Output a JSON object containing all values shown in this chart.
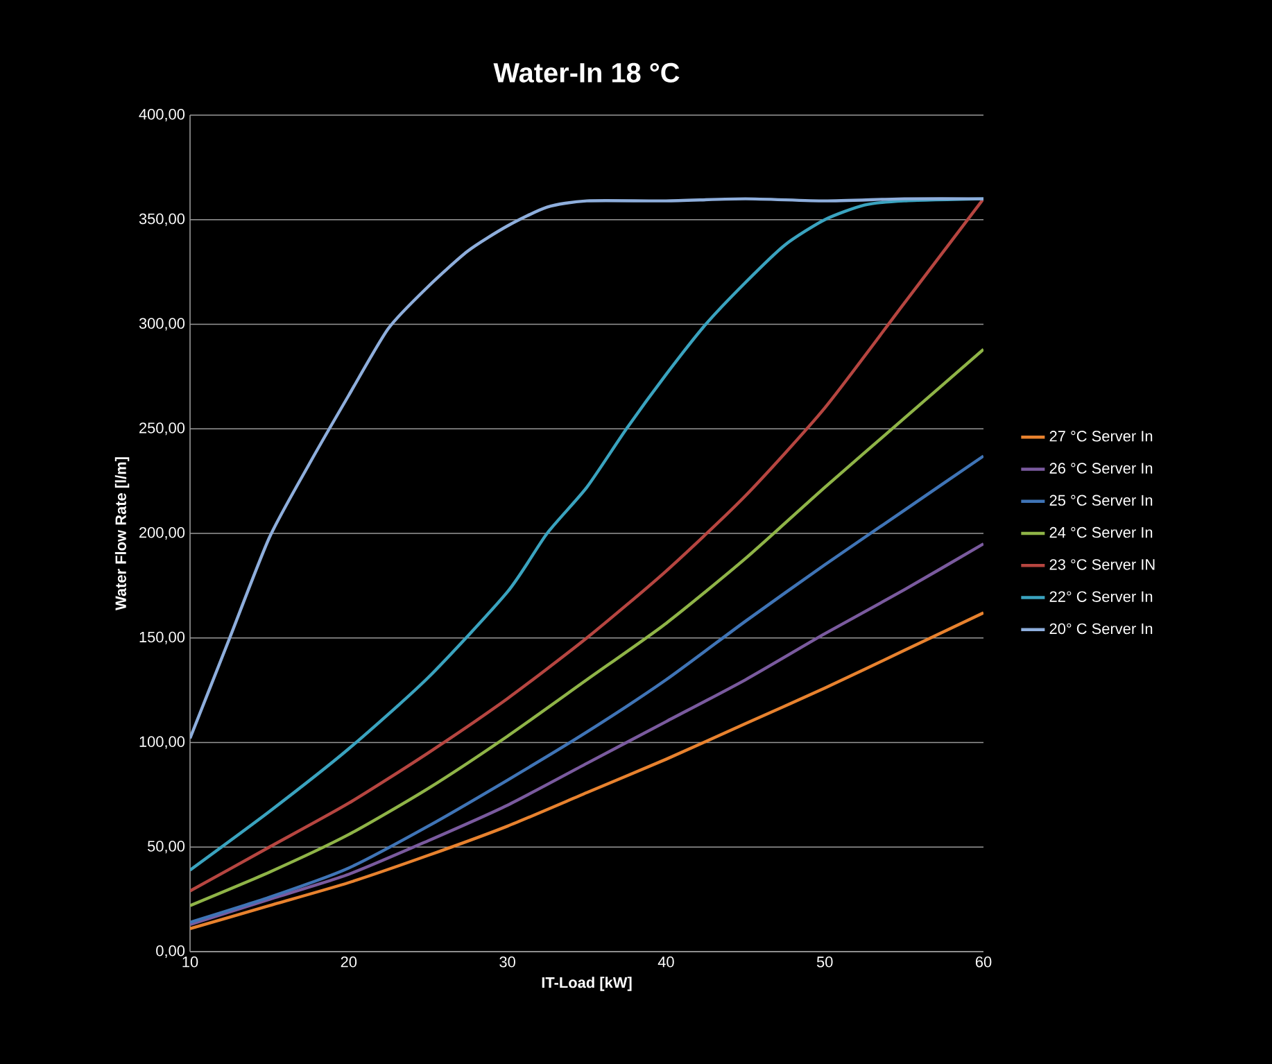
{
  "chart_data": {
    "type": "line",
    "title": "Water-In 18 °C",
    "xlabel": "IT-Load [kW]",
    "ylabel": "Water Flow Rate [l/m]",
    "xlim": [
      10,
      60
    ],
    "xticks": [
      10,
      20,
      30,
      40,
      50,
      60
    ],
    "ylim": [
      0,
      400
    ],
    "yticks": [
      {
        "value": 0,
        "label": "0,00"
      },
      {
        "value": 50,
        "label": "50,00"
      },
      {
        "value": 100,
        "label": "100,00"
      },
      {
        "value": 150,
        "label": "150,00"
      },
      {
        "value": 200,
        "label": "200,00"
      },
      {
        "value": 250,
        "label": "250,00"
      },
      {
        "value": 300,
        "label": "300,00"
      },
      {
        "value": 350,
        "label": "350,00"
      },
      {
        "value": 400,
        "label": "400,00"
      }
    ],
    "grid": "y",
    "legend": "right",
    "marker": "none",
    "line_style": "solid",
    "series": [
      {
        "name": "27 °C Server In",
        "color": "#e8822e",
        "x": [
          10,
          15,
          20,
          25,
          30,
          35,
          40,
          45,
          50,
          55,
          60
        ],
        "values": [
          11,
          22,
          33,
          46,
          60,
          76,
          92,
          109,
          126,
          144,
          162
        ]
      },
      {
        "name": "26 °C Server In",
        "color": "#7a5a9e",
        "x": [
          10,
          15,
          20,
          25,
          30,
          35,
          40,
          45,
          50,
          55,
          60
        ],
        "values": [
          13,
          25,
          37,
          53,
          70,
          90,
          110,
          130,
          152,
          173,
          195
        ]
      },
      {
        "name": "25 °C Server In",
        "color": "#3f74b6",
        "x": [
          10,
          15,
          20,
          25,
          30,
          35,
          40,
          45,
          50,
          55,
          60
        ],
        "values": [
          14,
          26,
          40,
          60,
          82,
          105,
          130,
          158,
          185,
          211,
          237
        ]
      },
      {
        "name": "24 °C Server In",
        "color": "#8fb447",
        "x": [
          10,
          15,
          20,
          25,
          30,
          35,
          40,
          45,
          50,
          55,
          60
        ],
        "values": [
          22,
          38,
          56,
          78,
          103,
          130,
          157,
          188,
          222,
          255,
          288
        ]
      },
      {
        "name": "23 °C Server IN",
        "color": "#b64540",
        "x": [
          10,
          15,
          20,
          25,
          30,
          35,
          40,
          45,
          50,
          55,
          60
        ],
        "values": [
          29,
          50,
          71,
          95,
          121,
          150,
          182,
          218,
          260,
          310,
          360
        ]
      },
      {
        "name": "22° C Server In",
        "color": "#3aa3bf",
        "x": [
          10,
          15,
          20,
          25,
          30,
          32.5,
          35,
          37.5,
          40,
          42.5,
          45,
          47.5,
          50,
          52.5,
          55,
          60
        ],
        "values": [
          39,
          67,
          97,
          131,
          172,
          200,
          222,
          250,
          276,
          300,
          320,
          338,
          350,
          357,
          359,
          360
        ]
      },
      {
        "name": "20° C Server In",
        "color": "#8eaedc",
        "x": [
          10,
          12.5,
          15,
          17.5,
          20,
          22.5,
          25,
          27.5,
          30,
          32.5,
          35,
          40,
          45,
          50,
          55,
          60
        ],
        "values": [
          102,
          150,
          198,
          233,
          266,
          298,
          318,
          335,
          347,
          356,
          359,
          359,
          360,
          359,
          360,
          360
        ]
      }
    ]
  }
}
